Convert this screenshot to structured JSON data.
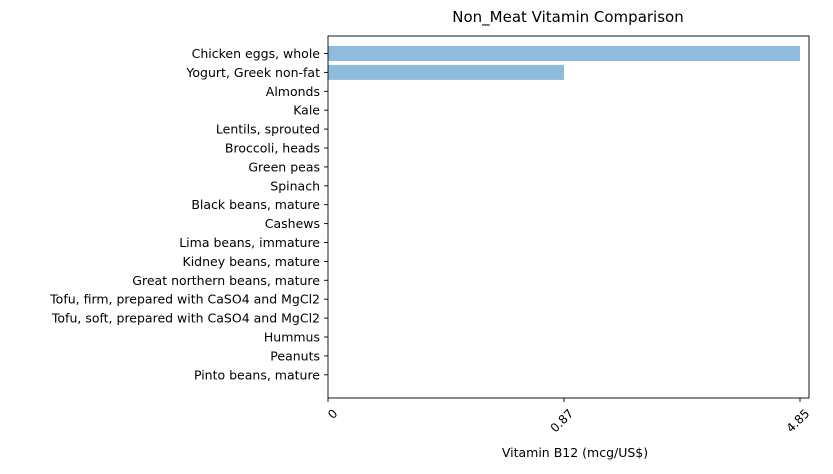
{
  "colors": {
    "bar": "#8fbcdc",
    "axis": "#000000",
    "background": "#ffffff"
  },
  "chart_data": {
    "type": "bar",
    "orientation": "horizontal",
    "title": "Non_Meat Vitamin Comparison",
    "xlabel": "Vitamin B12 (mcg/US$)",
    "ylabel": "",
    "categories": [
      "Chicken eggs, whole",
      "Yogurt, Greek non-fat",
      "Almonds",
      "Kale",
      "Lentils, sprouted",
      "Broccoli, heads",
      "Green peas",
      "Spinach",
      "Black beans, mature",
      "Cashews",
      "Lima beans, immature",
      "Kidney beans, mature",
      "Great northern beans, mature",
      "Tofu, firm, prepared with CaSO4 and MgCl2",
      "Tofu, soft, prepared with CaSO4 and MgCl2",
      "Hummus",
      "Peanuts",
      "Pinto beans, mature"
    ],
    "values": [
      4.85,
      0.87,
      0,
      0,
      0,
      0,
      0,
      0,
      0,
      0,
      0,
      0,
      0,
      0,
      0,
      0,
      0,
      0
    ],
    "x_tick_labels": [
      "0",
      "0.87",
      "4.85"
    ],
    "x_tick_rotation_deg": 45,
    "x_scale": "categorical-rank",
    "grid": false,
    "legend": "none"
  }
}
